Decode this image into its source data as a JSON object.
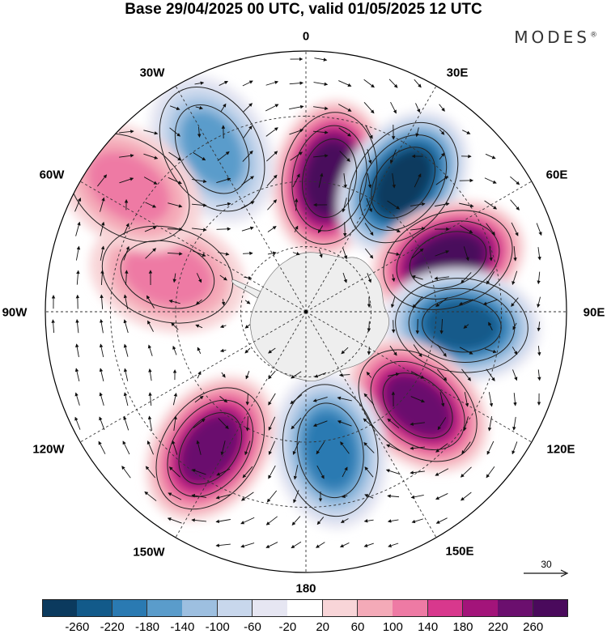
{
  "title": "Base 29/04/2025 00 UTC, valid 01/05/2025 12 UTC",
  "brand": "MODES",
  "longitude_labels": {
    "lon_0": "0",
    "lon_30e": "30E",
    "lon_60e": "60E",
    "lon_90e": "90E",
    "lon_120e": "120E",
    "lon_150e": "150E",
    "lon_180": "180",
    "lon_150w": "150W",
    "lon_120w": "120W",
    "lon_90w": "90W",
    "lon_60w": "60W",
    "lon_30w": "30W"
  },
  "reference_vector": {
    "label": "30"
  },
  "colorbar": {
    "ticks": [
      "-260",
      "-220",
      "-180",
      "-140",
      "-100",
      "-60",
      "-20",
      "20",
      "60",
      "100",
      "140",
      "180",
      "220",
      "260"
    ],
    "colors": [
      "#0b3a5e",
      "#125a8a",
      "#2a7ab2",
      "#5a9ccb",
      "#9dbfe0",
      "#c8d7ec",
      "#e6e6f2",
      "#ffffff",
      "#f8d5d8",
      "#f4aab8",
      "#ee7aa4",
      "#d8388d",
      "#a3147a",
      "#6b0f6e",
      "#4a0a5c"
    ]
  },
  "map": {
    "projection": "south-polar-stereographic",
    "background": "#ffffff",
    "antarctica_color": "#eeeeee",
    "field": "geopotential height anomaly with wind vectors",
    "anomaly_centers": [
      {
        "lon": 10,
        "colat_frac": 0.52,
        "value": 260
      },
      {
        "lon": 37,
        "colat_frac": 0.62,
        "value": -260
      },
      {
        "lon": 70,
        "colat_frac": 0.58,
        "value": 260
      },
      {
        "lon": 95,
        "colat_frac": 0.6,
        "value": -220
      },
      {
        "lon": 130,
        "colat_frac": 0.56,
        "value": 240
      },
      {
        "lon": 170,
        "colat_frac": 0.54,
        "value": -180
      },
      {
        "lon": 215,
        "colat_frac": 0.64,
        "value": 220
      },
      {
        "lon": 330,
        "colat_frac": 0.72,
        "value": -140
      },
      {
        "lon": 285,
        "colat_frac": 0.55,
        "value": 120
      },
      {
        "lon": 305,
        "colat_frac": 0.83,
        "value": 100
      }
    ]
  }
}
